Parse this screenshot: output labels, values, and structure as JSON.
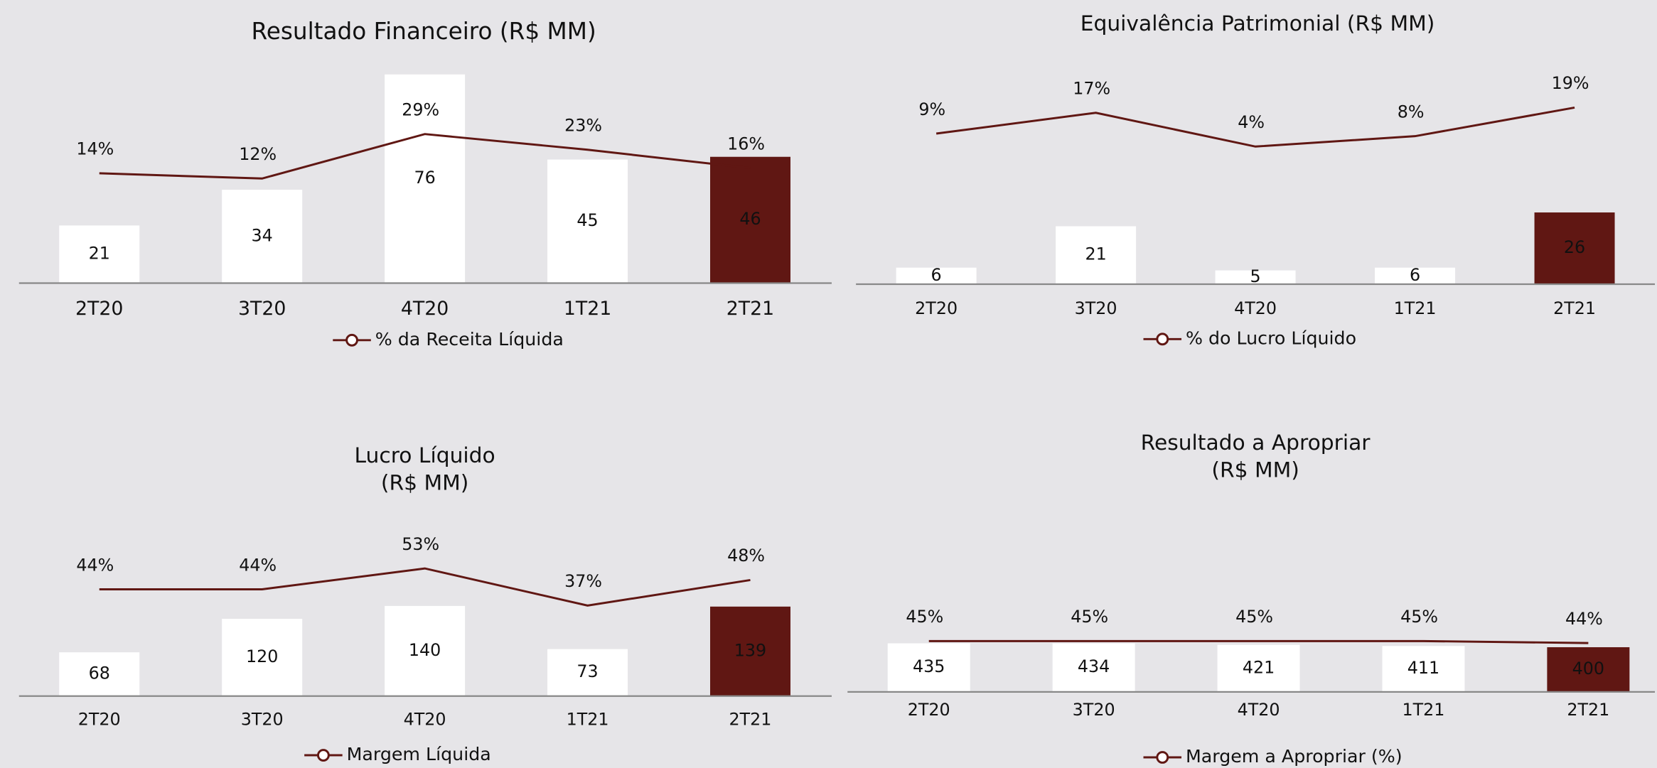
{
  "chart_data": [
    {
      "type": "bar",
      "title": [
        "Resultado Financeiro (R$ MM)"
      ],
      "categories": [
        "2T20",
        "3T20",
        "4T20",
        "1T21",
        "2T21"
      ],
      "values": [
        21,
        34,
        76,
        45,
        46
      ],
      "colors": [
        "#ffffff",
        "#ffffff",
        "#ffffff",
        "#ffffff",
        "#601713"
      ],
      "ylim": [
        0,
        80
      ],
      "y2lim": [
        -28,
        56
      ],
      "line": {
        "name": "% da Receita Líquida",
        "color": "#601713",
        "axis": "y2",
        "values": [
          14,
          12,
          29,
          23,
          16
        ],
        "value_labels": [
          "14%",
          "12%",
          "29%",
          "23%",
          "16%"
        ]
      }
    },
    {
      "type": "bar",
      "title": [
        "Equivalência Patrimonial (R$ MM)"
      ],
      "categories": [
        "2T20",
        "3T20",
        "4T20",
        "1T21",
        "2T21"
      ],
      "values": [
        6,
        21,
        5,
        6,
        26
      ],
      "colors": [
        "#ffffff",
        "#ffffff",
        "#ffffff",
        "#ffffff",
        "#601713"
      ],
      "ylim": [
        0,
        80
      ],
      "y2lim": [
        -49,
        36
      ],
      "line": {
        "name": "% do Lucro Líquido",
        "color": "#601713",
        "axis": "y2",
        "values": [
          9,
          17,
          4,
          8,
          19
        ],
        "value_labels": [
          "9%",
          "17%",
          "4%",
          "8%",
          "19%"
        ]
      }
    },
    {
      "type": "bar",
      "title": [
        "Lucro Líquido",
        "(R$ MM)"
      ],
      "categories": [
        "2T20",
        "3T20",
        "4T20",
        "1T21",
        "2T21"
      ],
      "values": [
        68,
        120,
        140,
        73,
        139
      ],
      "colors": [
        "#ffffff",
        "#ffffff",
        "#ffffff",
        "#ffffff",
        "#601713"
      ],
      "ylim": [
        0,
        310
      ],
      "y2lim": [
        -2,
        84
      ],
      "line": {
        "name": "Margem Líquida",
        "color": "#601713",
        "axis": "y2",
        "values": [
          44,
          44,
          53,
          37,
          48
        ],
        "value_labels": [
          "44%",
          "44%",
          "53%",
          "37%",
          "48%"
        ]
      }
    },
    {
      "type": "bar",
      "title": [
        "Resultado a Apropriar",
        "(R$ MM)"
      ],
      "categories": [
        "2T20",
        "3T20",
        "4T20",
        "1T21",
        "2T21"
      ],
      "values": [
        435,
        434,
        421,
        411,
        400
      ],
      "colors": [
        "#ffffff",
        "#ffffff",
        "#ffffff",
        "#ffffff",
        "#601713"
      ],
      "ylim": [
        0,
        1750
      ],
      "y2lim": [
        19,
        119
      ],
      "line": {
        "name": "Margem a Apropriar (%)",
        "color": "#601713",
        "axis": "y2",
        "values": [
          45,
          45,
          45,
          45,
          44
        ],
        "value_labels": [
          "45%",
          "45%",
          "45%",
          "45%",
          "44%"
        ]
      }
    }
  ]
}
